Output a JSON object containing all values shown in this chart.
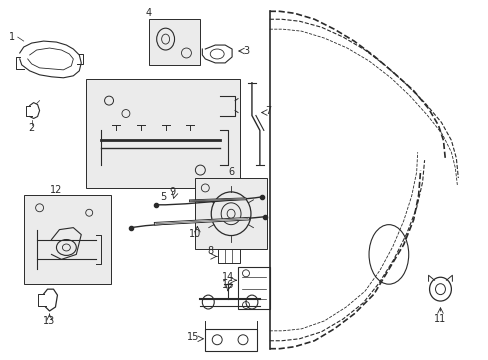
{
  "background_color": "#ffffff",
  "line_color": "#2a2a2a",
  "box_color": "#ebebeb",
  "figsize": [
    4.89,
    3.6
  ],
  "dpi": 100
}
